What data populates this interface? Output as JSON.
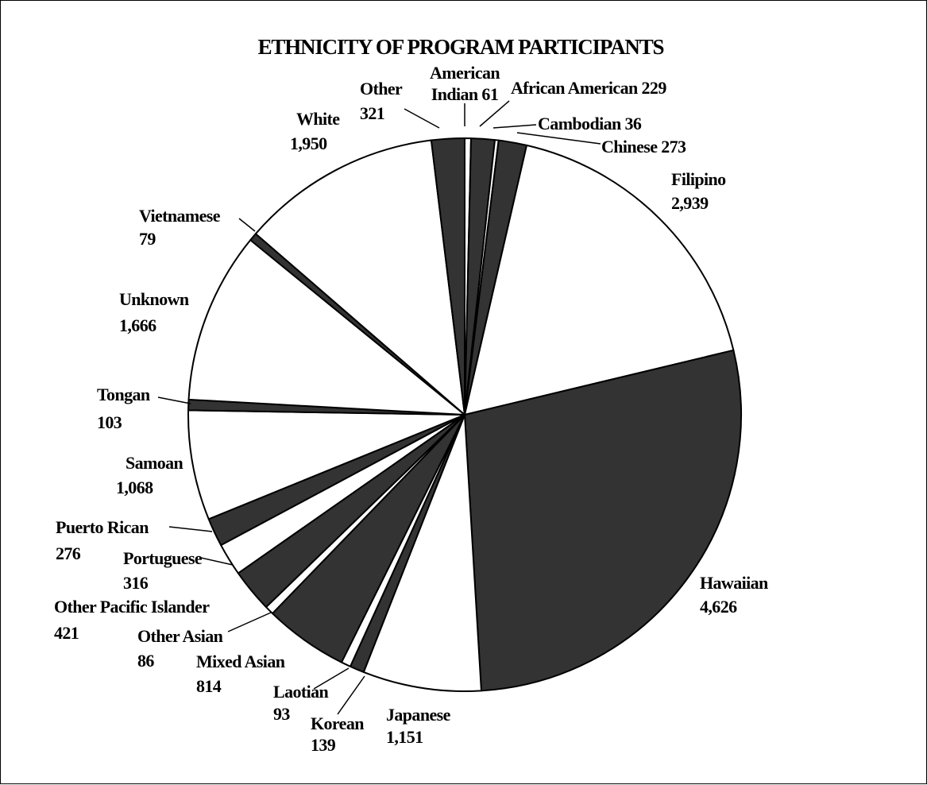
{
  "chart_data": {
    "type": "pie",
    "title": "ETHNICITY OF PROGRAM PARTICIPANTS",
    "slices": [
      {
        "name": "American Indian",
        "value": 61,
        "value_label": "61",
        "color": "#ffffff"
      },
      {
        "name": "African American",
        "value": 229,
        "value_label": "229",
        "color": "#333333"
      },
      {
        "name": "Cambodian",
        "value": 36,
        "value_label": "36",
        "color": "#ffffff"
      },
      {
        "name": "Chinese",
        "value": 273,
        "value_label": "273",
        "color": "#333333"
      },
      {
        "name": "Filipino",
        "value": 2939,
        "value_label": "2,939",
        "color": "#ffffff"
      },
      {
        "name": "Hawaiian",
        "value": 4626,
        "value_label": "4,626",
        "color": "#333333"
      },
      {
        "name": "Japanese",
        "value": 1151,
        "value_label": "1,151",
        "color": "#ffffff"
      },
      {
        "name": "Korean",
        "value": 139,
        "value_label": "139",
        "color": "#333333"
      },
      {
        "name": "Laotian",
        "value": 93,
        "value_label": "93",
        "color": "#ffffff"
      },
      {
        "name": "Mixed Asian",
        "value": 814,
        "value_label": "814",
        "color": "#333333"
      },
      {
        "name": "Other Asian",
        "value": 86,
        "value_label": "86",
        "color": "#ffffff"
      },
      {
        "name": "Other Pacific Islander",
        "value": 421,
        "value_label": "421",
        "color": "#333333"
      },
      {
        "name": "Portuguese",
        "value": 316,
        "value_label": "316",
        "color": "#ffffff"
      },
      {
        "name": "Puerto Rican",
        "value": 276,
        "value_label": "276",
        "color": "#333333"
      },
      {
        "name": "Samoan",
        "value": 1068,
        "value_label": "1,068",
        "color": "#ffffff"
      },
      {
        "name": "Tongan",
        "value": 103,
        "value_label": "103",
        "color": "#333333"
      },
      {
        "name": "Unknown",
        "value": 1666,
        "value_label": "1,666",
        "color": "#ffffff"
      },
      {
        "name": "Vietnamese",
        "value": 79,
        "value_label": "79",
        "color": "#333333"
      },
      {
        "name": "White",
        "value": 1950,
        "value_label": "1,950",
        "color": "#ffffff"
      },
      {
        "name": "Other",
        "value": 321,
        "value_label": "321",
        "color": "#333333"
      }
    ]
  }
}
